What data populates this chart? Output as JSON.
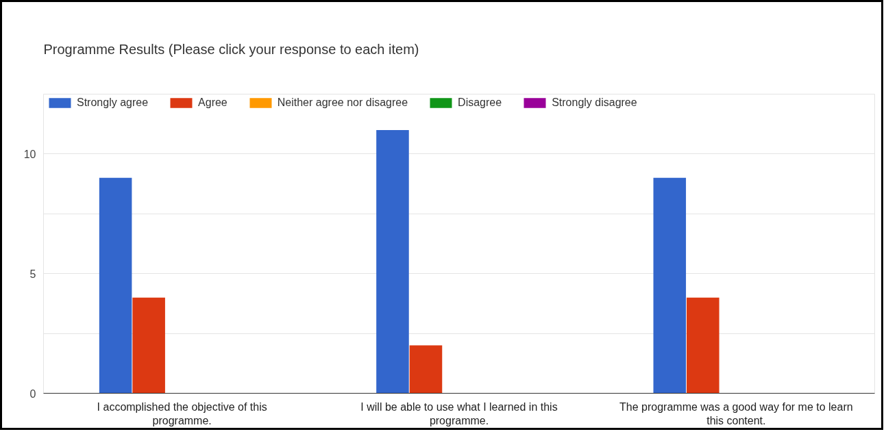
{
  "chart_data": {
    "type": "bar",
    "title": "Programme Results (Please click your response to each item)",
    "categories": [
      "I accomplished the objective of this programme.",
      "I will be able to use what I learned in this programme.",
      "The programme was a good way for me to learn this content."
    ],
    "series": [
      {
        "name": "Strongly agree",
        "color": "#3366cc",
        "values": [
          9,
          11,
          9
        ]
      },
      {
        "name": "Agree",
        "color": "#dc3912",
        "values": [
          4,
          2,
          4
        ]
      },
      {
        "name": "Neither agree nor disagree",
        "color": "#ff9900",
        "values": [
          0,
          0,
          0
        ]
      },
      {
        "name": "Disagree",
        "color": "#109618",
        "values": [
          0,
          0,
          0
        ]
      },
      {
        "name": "Strongly disagree",
        "color": "#990099",
        "values": [
          0,
          0,
          0
        ]
      }
    ],
    "ylim": [
      0,
      12.5
    ],
    "yticks": [
      0,
      {
        "value": 2.5,
        "label": null
      },
      5,
      {
        "value": 7.5,
        "label": null
      },
      10,
      {
        "value": 12.5,
        "label": null
      }
    ],
    "grid": "y",
    "legend": "top"
  }
}
